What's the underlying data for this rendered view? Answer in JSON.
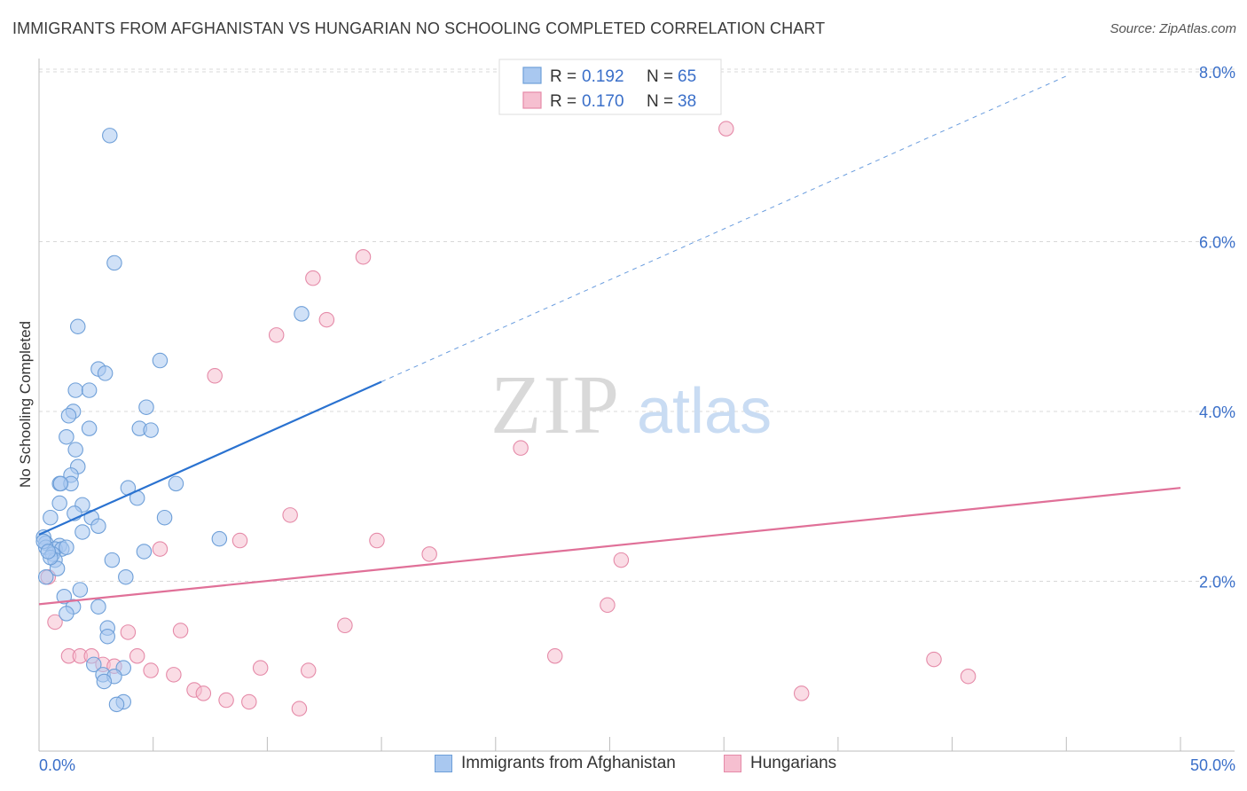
{
  "title": "IMMIGRANTS FROM AFGHANISTAN VS HUNGARIAN NO SCHOOLING COMPLETED CORRELATION CHART",
  "source": "Source: ZipAtlas.com",
  "watermark": {
    "zip": "ZIP",
    "atlas": "atlas"
  },
  "colors": {
    "blue_fill": "#a9c8f0",
    "blue_stroke": "#6e9fd8",
    "blue_line": "#2a72d0",
    "pink_fill": "#f6bfd0",
    "pink_stroke": "#e58aa8",
    "pink_line": "#e07098",
    "axis_text": "#3a6fc9",
    "grid": "#d8d8d8"
  },
  "chart_data": {
    "type": "scatter",
    "title": "IMMIGRANTS FROM AFGHANISTAN VS HUNGARIAN NO SCHOOLING COMPLETED CORRELATION CHART",
    "xlabel": "",
    "ylabel": "No Schooling Completed",
    "xlim": [
      0,
      50
    ],
    "ylim": [
      0,
      8.3
    ],
    "x_tick_labels": {
      "left": "0.0%",
      "right": "50.0%"
    },
    "y_ticks": [
      {
        "v": 2,
        "label": "2.0%"
      },
      {
        "v": 4,
        "label": "4.0%"
      },
      {
        "v": 6,
        "label": "6.0%"
      },
      {
        "v": 8,
        "label": "8.0%"
      }
    ],
    "legend": [
      {
        "label": "R = ",
        "r": "0.192",
        "n_label": "N = ",
        "n": "65"
      },
      {
        "label": "R = ",
        "r": "0.170",
        "n_label": "N = ",
        "n": "38"
      }
    ],
    "series": [
      {
        "name": "Immigrants from Afghanistan",
        "color": "blue",
        "trend": {
          "x0": 0,
          "y0": 2.55,
          "x1": 15,
          "y1": 4.35,
          "dash_to_x": 45
        },
        "points": [
          [
            3.1,
            7.25
          ],
          [
            3.3,
            5.75
          ],
          [
            1.7,
            5.0
          ],
          [
            11.5,
            5.15
          ],
          [
            5.3,
            4.6
          ],
          [
            2.6,
            4.5
          ],
          [
            2.9,
            4.45
          ],
          [
            1.6,
            4.25
          ],
          [
            2.2,
            4.25
          ],
          [
            1.5,
            4.0
          ],
          [
            1.3,
            3.95
          ],
          [
            4.7,
            4.05
          ],
          [
            4.4,
            3.8
          ],
          [
            4.9,
            3.78
          ],
          [
            2.2,
            3.8
          ],
          [
            1.2,
            3.7
          ],
          [
            1.6,
            3.55
          ],
          [
            1.7,
            3.35
          ],
          [
            1.4,
            3.25
          ],
          [
            0.9,
            3.15
          ],
          [
            1.4,
            3.15
          ],
          [
            0.95,
            3.15
          ],
          [
            3.9,
            3.1
          ],
          [
            6.0,
            3.15
          ],
          [
            4.3,
            2.98
          ],
          [
            0.9,
            2.92
          ],
          [
            1.9,
            2.9
          ],
          [
            0.5,
            2.75
          ],
          [
            1.55,
            2.8
          ],
          [
            2.3,
            2.75
          ],
          [
            5.5,
            2.75
          ],
          [
            1.9,
            2.58
          ],
          [
            2.6,
            2.65
          ],
          [
            0.2,
            2.52
          ],
          [
            0.3,
            2.45
          ],
          [
            0.9,
            2.42
          ],
          [
            7.9,
            2.5
          ],
          [
            0.7,
            2.38
          ],
          [
            1.0,
            2.38
          ],
          [
            0.3,
            2.4
          ],
          [
            0.6,
            2.32
          ],
          [
            0.7,
            2.25
          ],
          [
            0.8,
            2.15
          ],
          [
            4.6,
            2.35
          ],
          [
            3.2,
            2.25
          ],
          [
            3.8,
            2.05
          ],
          [
            0.3,
            2.05
          ],
          [
            1.8,
            1.9
          ],
          [
            1.1,
            1.82
          ],
          [
            1.5,
            1.7
          ],
          [
            2.6,
            1.7
          ],
          [
            1.2,
            1.62
          ],
          [
            3.0,
            1.45
          ],
          [
            3.0,
            1.35
          ],
          [
            2.4,
            1.02
          ],
          [
            3.7,
            0.98
          ],
          [
            2.8,
            0.9
          ],
          [
            3.3,
            0.88
          ],
          [
            2.85,
            0.82
          ],
          [
            3.7,
            0.58
          ],
          [
            3.4,
            0.55
          ],
          [
            0.2,
            2.47
          ],
          [
            0.5,
            2.28
          ],
          [
            1.2,
            2.4
          ],
          [
            0.4,
            2.35
          ]
        ]
      },
      {
        "name": "Hungarians",
        "color": "pink",
        "trend": {
          "x0": 0,
          "y0": 1.73,
          "x1": 50,
          "y1": 3.1
        },
        "points": [
          [
            30.1,
            7.33
          ],
          [
            14.2,
            5.82
          ],
          [
            12.0,
            5.57
          ],
          [
            12.6,
            5.08
          ],
          [
            10.4,
            4.9
          ],
          [
            7.7,
            4.42
          ],
          [
            21.1,
            3.57
          ],
          [
            11.0,
            2.78
          ],
          [
            8.8,
            2.48
          ],
          [
            14.8,
            2.48
          ],
          [
            5.3,
            2.38
          ],
          [
            17.1,
            2.32
          ],
          [
            25.5,
            2.25
          ],
          [
            0.4,
            2.05
          ],
          [
            0.7,
            1.52
          ],
          [
            24.9,
            1.72
          ],
          [
            13.4,
            1.48
          ],
          [
            3.9,
            1.4
          ],
          [
            6.2,
            1.42
          ],
          [
            1.3,
            1.12
          ],
          [
            1.8,
            1.12
          ],
          [
            2.3,
            1.12
          ],
          [
            4.3,
            1.12
          ],
          [
            22.6,
            1.12
          ],
          [
            2.8,
            1.02
          ],
          [
            3.3,
            1.0
          ],
          [
            9.7,
            0.98
          ],
          [
            11.8,
            0.95
          ],
          [
            4.9,
            0.95
          ],
          [
            5.9,
            0.9
          ],
          [
            39.2,
            1.08
          ],
          [
            40.7,
            0.88
          ],
          [
            6.8,
            0.72
          ],
          [
            7.2,
            0.68
          ],
          [
            33.4,
            0.68
          ],
          [
            8.2,
            0.6
          ],
          [
            9.2,
            0.58
          ],
          [
            11.4,
            0.5
          ]
        ]
      }
    ]
  }
}
